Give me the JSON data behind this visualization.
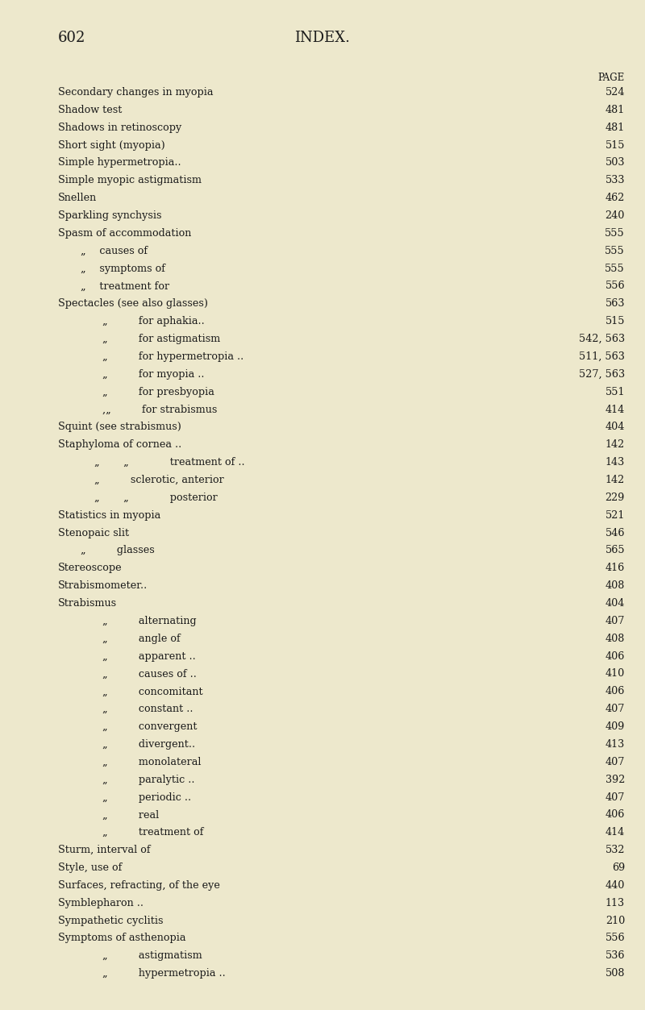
{
  "page_number": "602",
  "page_title": "INDEX.",
  "header_right": "PAGE",
  "bg_color": "#ede8cc",
  "text_color": "#1a1a1a",
  "fig_width": 8.0,
  "fig_height": 12.53,
  "dpi": 100,
  "entries": [
    {
      "indent": 0,
      "text": "Secondary changes in myopia",
      "dots": true,
      "page": "524"
    },
    {
      "indent": 0,
      "text": "Shadow test",
      "dots": true,
      "page": "481"
    },
    {
      "indent": 0,
      "text": "Shadows in retinoscopy",
      "dots": true,
      "page": "481"
    },
    {
      "indent": 0,
      "text": "Short sight (myopia)",
      "dots": true,
      "page": "515"
    },
    {
      "indent": 0,
      "text": "Simple hypermetropia..",
      "dots": true,
      "page": "503"
    },
    {
      "indent": 0,
      "text": "Simple myopic astigmatism",
      "dots": true,
      "page": "533"
    },
    {
      "indent": 0,
      "text": "Snellen",
      "dots": true,
      "page": "462"
    },
    {
      "indent": 0,
      "text": "Sparkling synchysis",
      "dots": true,
      "page": "240"
    },
    {
      "indent": 0,
      "text": "Spasm of accommodation",
      "dots": true,
      "page": "555"
    },
    {
      "indent": 1,
      "text": "„  causes of",
      "dots": true,
      "page": "555"
    },
    {
      "indent": 1,
      "text": "„  symptoms of",
      "dots": true,
      "page": "555"
    },
    {
      "indent": 1,
      "text": "„  treatment for",
      "dots": true,
      "page": "556"
    },
    {
      "indent": 0,
      "text": "Spectacles (see also glasses)",
      "dots": true,
      "page": "563"
    },
    {
      "indent": 2,
      "text": "„   for aphakia..",
      "dots": true,
      "page": "515"
    },
    {
      "indent": 2,
      "text": "„   for astigmatism",
      "dots": true,
      "page": "542, 563"
    },
    {
      "indent": 2,
      "text": "„   for hypermetropia ..",
      "dots": true,
      "page": "511, 563"
    },
    {
      "indent": 2,
      "text": "„   for myopia ..",
      "dots": true,
      "page": "527, 563"
    },
    {
      "indent": 2,
      "text": "„   for presbyopia",
      "dots": true,
      "page": "551"
    },
    {
      "indent": 2,
      "text": ",„   for strabismus",
      "dots": true,
      "page": "414"
    },
    {
      "indent": 0,
      "text": "Squint (see strabismus)",
      "dots": true,
      "page": "404"
    },
    {
      "indent": 0,
      "text": "Staphyloma of cornea ..",
      "dots": true,
      "page": "142"
    },
    {
      "indent": 3,
      "text": "„   „    treatment of ..",
      "dots": true,
      "page": "143"
    },
    {
      "indent": 3,
      "text": "„   sclerotic, anterior",
      "dots": true,
      "page": "142"
    },
    {
      "indent": 3,
      "text": "„   „    posterior",
      "dots": true,
      "page": "229"
    },
    {
      "indent": 0,
      "text": "Statistics in myopia",
      "dots": true,
      "page": "521"
    },
    {
      "indent": 0,
      "text": "Stenopaic slit",
      "dots": true,
      "page": "546"
    },
    {
      "indent": 1,
      "text": "„   glasses",
      "dots": true,
      "page": "565"
    },
    {
      "indent": 0,
      "text": "Stereoscope",
      "dots": true,
      "page": "416"
    },
    {
      "indent": 0,
      "text": "Strabismometer..",
      "dots": true,
      "page": "408"
    },
    {
      "indent": 0,
      "text": "Strabismus",
      "dots": true,
      "page": "404"
    },
    {
      "indent": 2,
      "text": "„   alternating",
      "dots": true,
      "page": "407"
    },
    {
      "indent": 2,
      "text": "„   angle of",
      "dots": true,
      "page": "408"
    },
    {
      "indent": 2,
      "text": "„   apparent ..",
      "dots": true,
      "page": "406"
    },
    {
      "indent": 2,
      "text": "„   causes of ..",
      "dots": true,
      "page": "410"
    },
    {
      "indent": 2,
      "text": "„   concomitant",
      "dots": true,
      "page": "406"
    },
    {
      "indent": 2,
      "text": "„   constant ..",
      "dots": true,
      "page": "407"
    },
    {
      "indent": 2,
      "text": "„   convergent",
      "dots": true,
      "page": "409"
    },
    {
      "indent": 2,
      "text": "„   divergent..",
      "dots": true,
      "page": "413"
    },
    {
      "indent": 2,
      "text": "„   monolateral",
      "dots": true,
      "page": "407"
    },
    {
      "indent": 2,
      "text": "„   paralytic ..",
      "dots": true,
      "page": "392"
    },
    {
      "indent": 2,
      "text": "„   periodic ..",
      "dots": true,
      "page": "407"
    },
    {
      "indent": 2,
      "text": "„   real",
      "dots": true,
      "page": "406"
    },
    {
      "indent": 2,
      "text": "„   treatment of",
      "dots": true,
      "page": "414"
    },
    {
      "indent": 0,
      "text": "Sturm, interval of",
      "dots": true,
      "page": "532"
    },
    {
      "indent": 0,
      "text": "Style, use of",
      "dots": true,
      "page": "69"
    },
    {
      "indent": 0,
      "text": "Surfaces, refracting, of the eye",
      "dots": true,
      "page": "440"
    },
    {
      "indent": 0,
      "text": "Symblepharon ..",
      "dots": true,
      "page": "113"
    },
    {
      "indent": 0,
      "text": "Sympathetic cyclitis",
      "dots": true,
      "page": "210"
    },
    {
      "indent": 0,
      "text": "Symptoms of asthenopia",
      "dots": true,
      "page": "556"
    },
    {
      "indent": 2,
      "text": "„   astigmatism",
      "dots": true,
      "page": "536"
    },
    {
      "indent": 2,
      "text": "„   hypermetropia ..",
      "dots": true,
      "page": "508"
    }
  ]
}
